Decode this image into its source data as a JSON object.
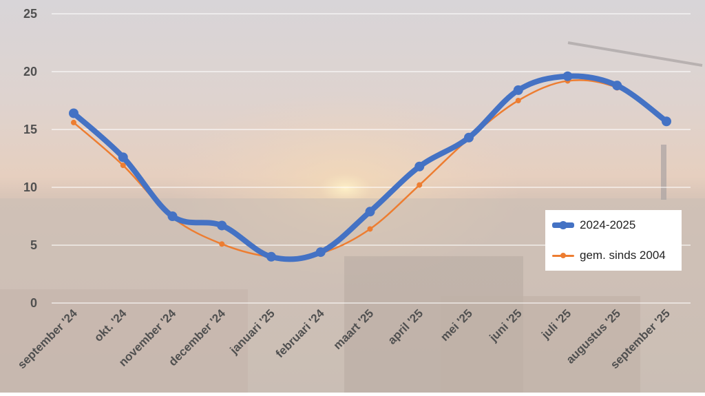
{
  "chart_data": {
    "type": "line",
    "categories": [
      "september '24",
      "okt. '24",
      "november '24",
      "december '24",
      "januari '25",
      "februari '24",
      "maart '25",
      "april '25",
      "mei '25",
      "juni '25",
      "juli '25",
      "augustus '25",
      "september '25"
    ],
    "series": [
      {
        "name": "2024-2025",
        "color": "#4472C4",
        "values": [
          16.4,
          12.6,
          7.5,
          6.7,
          4.0,
          4.4,
          7.9,
          11.8,
          14.3,
          18.4,
          19.6,
          18.8,
          15.7
        ]
      },
      {
        "name": "gem. sinds 2004",
        "color": "#ED7D31",
        "values": [
          15.6,
          11.9,
          7.4,
          5.1,
          4.0,
          4.3,
          6.4,
          10.2,
          14.2,
          17.5,
          19.2,
          18.6,
          15.7
        ]
      }
    ],
    "ylim": [
      0,
      25
    ],
    "yticks": [
      0,
      5,
      10,
      15,
      20,
      25
    ],
    "grid": true,
    "legend_position": "right",
    "background": "photo of a city skyline at sunset"
  }
}
